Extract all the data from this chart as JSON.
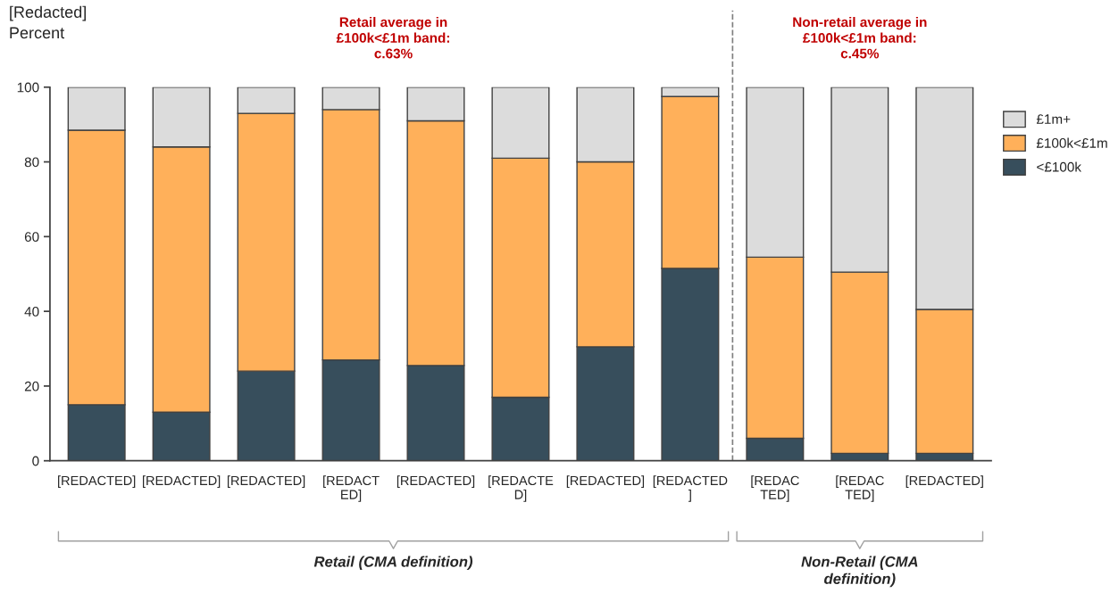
{
  "chart_data": {
    "type": "bar",
    "title": "[Redacted]",
    "ylabel": "Percent",
    "categories": [
      "[REDACTED]",
      "[REDACTED]",
      "[REDACTED]",
      "[REDACT\nED]",
      "[REDACTED]",
      "[REDACTE\nD]",
      "[REDACTED]",
      "[REDACTED\n]",
      "[REDAC\nTED]",
      "[REDAC\nTED]",
      "[REDACTED]"
    ],
    "stacked": true,
    "series": [
      {
        "name": "<£100k",
        "color": "#374e5c",
        "values": [
          15,
          13,
          24,
          27,
          25.5,
          17,
          30.5,
          51.5,
          6,
          2,
          2
        ]
      },
      {
        "name": "£100k<£1m",
        "color": "#ffb05a",
        "values": [
          73.5,
          71,
          69,
          67,
          65.5,
          64,
          49.5,
          46,
          48.5,
          48.5,
          38.5
        ]
      },
      {
        "name": "£1m+",
        "color": "#dcdcdc",
        "values": [
          11.5,
          16,
          7,
          6,
          9,
          19,
          20,
          2.5,
          45.5,
          49.5,
          59.5
        ]
      }
    ],
    "ylim": [
      0,
      100
    ],
    "yticks": [
      0,
      20,
      40,
      60,
      80,
      100
    ],
    "annotations": [
      "Retail average in\n£100k<£1m band:\nc.63%",
      "Non-retail average in\n£100k<£1m band:\nc.45%",
      "Retail (CMA definition)",
      "Non-Retail (CMA\ndefinition)"
    ],
    "legend": "right",
    "grid": false
  }
}
